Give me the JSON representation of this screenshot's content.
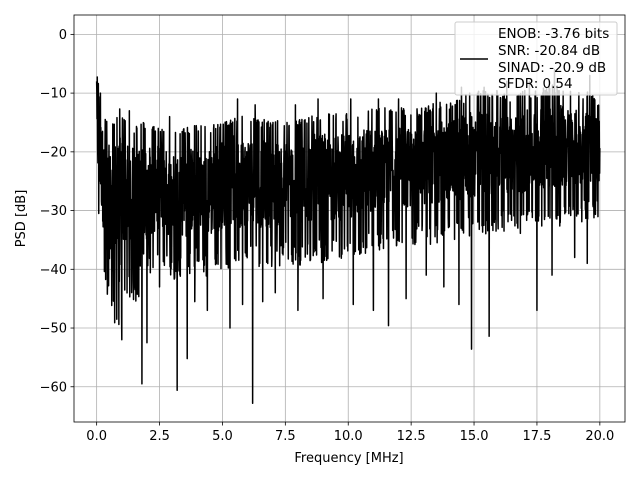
{
  "chart_data": {
    "type": "line",
    "xlabel": "Frequency [MHz]",
    "ylabel": "PSD [dB]",
    "xlim": [
      -0.9,
      21.0
    ],
    "ylim": [
      -66,
      3.3
    ],
    "xticks": [
      0.0,
      2.5,
      5.0,
      7.5,
      10.0,
      12.5,
      15.0,
      17.5,
      20.0
    ],
    "xtick_labels": [
      "0.0",
      "2.5",
      "5.0",
      "7.5",
      "10.0",
      "12.5",
      "15.0",
      "17.5",
      "20.0"
    ],
    "yticks": [
      0,
      -10,
      -20,
      -30,
      -40,
      -50,
      -60
    ],
    "ytick_labels": [
      "0",
      "−10",
      "−20",
      "−30",
      "−40",
      "−50",
      "−60"
    ],
    "grid": true,
    "legend_position": "upper-right",
    "series_color": "#000000",
    "legend_lines": [
      "ENOB: -3.76 bits",
      "SNR: -20.84 dB",
      "SINAD: -20.9 dB",
      "SFDR: 0.54"
    ],
    "series": [
      {
        "x": [
          0.0,
          0.3,
          0.6,
          0.9,
          1.2,
          1.5,
          1.8,
          2.0,
          2.5,
          3.0,
          3.5,
          4.0,
          4.5,
          5.0,
          5.5,
          6.0,
          6.5,
          7.0,
          7.5,
          8.0,
          8.5,
          9.0,
          9.5,
          10.0,
          10.5,
          11.0,
          11.5,
          12.0,
          12.5,
          13.0,
          13.5,
          14.0,
          14.5,
          15.0,
          15.5,
          16.0,
          16.5,
          17.0,
          17.5,
          18.0,
          18.5,
          19.0,
          19.5,
          20.0
        ],
        "upper": [
          -8,
          -15,
          -17,
          -14,
          -15,
          -17,
          -16,
          -17,
          -17,
          -18,
          -17,
          -17,
          -17,
          -16,
          -15,
          -15,
          -16,
          -16,
          -16,
          -16,
          -15,
          -15,
          -15,
          -15,
          -14,
          -14,
          -14,
          -14,
          -14,
          -14,
          -13,
          -13,
          -12,
          -11,
          -11,
          -11,
          -12,
          -11,
          -11,
          -10,
          -10,
          -11,
          -11,
          -13
        ],
        "lower": [
          -25,
          -38,
          -44,
          -48,
          -40,
          -42,
          -45,
          -38,
          -36,
          -38,
          -38,
          -36,
          -38,
          -36,
          -36,
          -36,
          -36,
          -36,
          -35,
          -36,
          -35,
          -35,
          -35,
          -34,
          -34,
          -33,
          -33,
          -33,
          -32,
          -32,
          -32,
          -31,
          -31,
          -31,
          -30,
          -30,
          -30,
          -30,
          -29,
          -29,
          -29,
          -29,
          -28,
          -27
        ],
        "dips": [
          [
            0.5,
            -36
          ],
          [
            0.8,
            -48.5
          ],
          [
            1.0,
            -52
          ],
          [
            1.3,
            -44
          ],
          [
            1.8,
            -59.5
          ],
          [
            2.0,
            -52.5
          ],
          [
            2.5,
            -43
          ],
          [
            3.2,
            -60.6
          ],
          [
            3.6,
            -55.2
          ],
          [
            3.9,
            -45.5
          ],
          [
            4.4,
            -47
          ],
          [
            5.3,
            -50
          ],
          [
            5.8,
            -46
          ],
          [
            6.2,
            -62.8
          ],
          [
            6.6,
            -45.5
          ],
          [
            7.1,
            -44
          ],
          [
            8.0,
            -47
          ],
          [
            9.0,
            -45
          ],
          [
            10.2,
            -46
          ],
          [
            11.0,
            -47
          ],
          [
            11.6,
            -49.6
          ],
          [
            12.3,
            -45
          ],
          [
            13.1,
            -41
          ],
          [
            13.8,
            -43
          ],
          [
            14.4,
            -46
          ],
          [
            14.9,
            -53.6
          ],
          [
            15.6,
            -51.4
          ],
          [
            16.3,
            -44
          ],
          [
            17.5,
            -47
          ],
          [
            18.1,
            -41
          ],
          [
            19.0,
            -38
          ],
          [
            19.5,
            -39
          ]
        ],
        "peaks": [
          [
            0.0,
            -8
          ],
          [
            0.15,
            -10
          ],
          [
            1.3,
            -13
          ],
          [
            2.9,
            -14
          ],
          [
            5.6,
            -11
          ],
          [
            6.3,
            -12
          ],
          [
            7.9,
            -12
          ],
          [
            8.8,
            -11
          ],
          [
            10.1,
            -11
          ],
          [
            11.2,
            -11
          ],
          [
            12.0,
            -11
          ],
          [
            13.5,
            -10
          ],
          [
            14.5,
            -9
          ],
          [
            15.4,
            -9
          ],
          [
            16.3,
            -8
          ],
          [
            17.2,
            -8
          ],
          [
            18.2,
            -6
          ],
          [
            19.6,
            -7
          ]
        ]
      }
    ]
  }
}
